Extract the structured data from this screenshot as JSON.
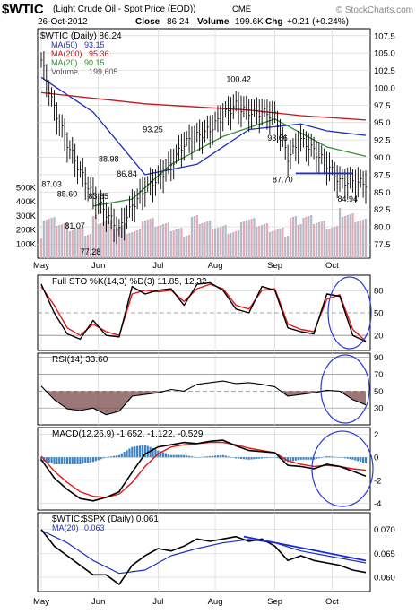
{
  "header": {
    "symbol": "$WTIC",
    "description": "(Light Crude Oil - Spot Price (EOD))",
    "exchange": "CME",
    "watermark": "© StockCharts.com",
    "date": "26-Oct-2012",
    "close_label": "Close",
    "close": "86.24",
    "volume_label": "Volume",
    "volume": "199.6K",
    "chg_label": "Chg",
    "chg": "+0.21 (+0.24%)"
  },
  "colors": {
    "price_bar": "#000000",
    "ma50": "#1f2fbf",
    "ma200": "#c0181b",
    "ma20": "#2f8f2f",
    "volume_up": "#b8b8c8",
    "volume_down": "#e8a8b0",
    "stoch_k": "#000000",
    "stoch_d": "#e01818",
    "macd_line": "#000000",
    "signal_line": "#e01818",
    "hist": "#3a82c4",
    "circle": "#2b3bd6",
    "ratio_ma": "#1f2fbf",
    "trendline": "#1a2ad8",
    "rsi_fill": "#7a4a4a"
  },
  "chart_data": [
    {
      "type": "line",
      "panel": "price",
      "title": "$WTIC (Daily) 86.24",
      "legend": [
        {
          "name": "MA(50)",
          "value": "93.15"
        },
        {
          "name": "MA(200)",
          "value": "95.36"
        },
        {
          "name": "MA(20)",
          "value": "90.15"
        },
        {
          "name": "Volume",
          "value": "199,605"
        }
      ],
      "x_labels": [
        "May",
        "Jun",
        "Jul",
        "Aug",
        "Sep",
        "Oct"
      ],
      "yticks": [
        77.5,
        80.0,
        82.5,
        85.0,
        87.5,
        90.0,
        92.5,
        95.0,
        97.5,
        100.0,
        102.5,
        105.0,
        107.5
      ],
      "ylim": [
        75.5,
        108.5
      ],
      "volume_ticks": [
        "100K",
        "200K",
        "300K",
        "400K",
        "500K"
      ],
      "x_index_range": [
        0,
        125
      ],
      "annotations": [
        {
          "x": 4,
          "y": 87.03,
          "text": "87.03"
        },
        {
          "x": 10,
          "y": 85.6,
          "text": "85.60"
        },
        {
          "x": 13,
          "y": 81.07,
          "text": "81.07"
        },
        {
          "x": 19,
          "y": 77.28,
          "text": "77.28"
        },
        {
          "x": 22,
          "y": 83.65,
          "text": "83.65"
        },
        {
          "x": 26,
          "y": 88.98,
          "text": "88.98"
        },
        {
          "x": 33,
          "y": 86.84,
          "text": "86.84"
        },
        {
          "x": 43,
          "y": 93.25,
          "text": "93.25"
        },
        {
          "x": 76,
          "y": 100.42,
          "text": "100.42"
        },
        {
          "x": 91,
          "y": 93.66,
          "text": "93.66"
        },
        {
          "x": 93,
          "y": 87.7,
          "text": "87.70"
        },
        {
          "x": 118,
          "y": 84.94,
          "text": "84.94"
        }
      ],
      "support_line": {
        "from_x": 98,
        "to_x": 120,
        "y": 87.7
      },
      "close_series": {
        "x": [
          0,
          5,
          10,
          15,
          20,
          25,
          30,
          35,
          40,
          45,
          50,
          55,
          60,
          65,
          70,
          75,
          80,
          85,
          90,
          95,
          100,
          105,
          110,
          115,
          120,
          125
        ],
        "y": [
          104.0,
          97.0,
          92.0,
          88.0,
          84.5,
          82.0,
          79.5,
          83.0,
          85.5,
          87.0,
          89.0,
          92.0,
          93.0,
          94.0,
          96.0,
          97.5,
          96.5,
          96.5,
          96.0,
          90.0,
          92.5,
          91.0,
          89.0,
          86.5,
          86.5,
          86.24
        ]
      },
      "series": [
        {
          "name": "MA(50)",
          "x": [
            0,
            20,
            40,
            60,
            80,
            100,
            110,
            125
          ],
          "y": [
            101.5,
            96.5,
            87.5,
            89.0,
            94.0,
            94.8,
            93.8,
            93.15
          ]
        },
        {
          "name": "MA(200)",
          "x": [
            0,
            40,
            80,
            100,
            125
          ],
          "y": [
            99.3,
            97.7,
            96.8,
            96.0,
            95.36
          ]
        },
        {
          "name": "MA(20)",
          "x": [
            20,
            35,
            50,
            70,
            90,
            110,
            125
          ],
          "y": [
            83.0,
            84.0,
            89.0,
            93.0,
            95.5,
            91.5,
            90.15
          ]
        }
      ]
    },
    {
      "type": "line",
      "panel": "stochastic",
      "title": "Full STO %K(14,3) %D(3) 11.85, 12.32",
      "yticks": [
        20,
        50,
        80
      ],
      "ylim": [
        0,
        100
      ],
      "series": [
        {
          "name": "%K",
          "x": [
            0,
            5,
            10,
            15,
            20,
            25,
            30,
            35,
            40,
            45,
            50,
            55,
            60,
            65,
            70,
            75,
            80,
            85,
            90,
            95,
            100,
            105,
            110,
            115,
            120,
            125
          ],
          "y": [
            88,
            50,
            22,
            15,
            40,
            20,
            18,
            85,
            75,
            80,
            82,
            60,
            88,
            90,
            80,
            55,
            50,
            85,
            80,
            30,
            25,
            22,
            75,
            72,
            20,
            11.85
          ]
        },
        {
          "name": "%D",
          "x": [
            0,
            5,
            10,
            15,
            20,
            25,
            30,
            35,
            40,
            45,
            50,
            55,
            60,
            65,
            70,
            75,
            80,
            85,
            90,
            95,
            100,
            105,
            110,
            115,
            120,
            125
          ],
          "y": [
            85,
            60,
            30,
            20,
            35,
            25,
            20,
            75,
            80,
            78,
            80,
            65,
            82,
            88,
            82,
            60,
            55,
            80,
            82,
            35,
            28,
            25,
            68,
            74,
            28,
            12.32
          ]
        }
      ]
    },
    {
      "type": "area",
      "panel": "rsi",
      "title": "RSI(14) 33.60",
      "yticks": [
        30,
        50,
        70,
        90
      ],
      "ylim": [
        10,
        95
      ],
      "series": [
        {
          "name": "RSI",
          "x": [
            0,
            5,
            10,
            15,
            20,
            25,
            30,
            35,
            40,
            45,
            50,
            55,
            60,
            65,
            70,
            75,
            80,
            85,
            90,
            95,
            100,
            105,
            110,
            115,
            120,
            125
          ],
          "y": [
            56,
            40,
            29,
            27,
            30,
            22,
            26,
            44,
            46,
            48,
            52,
            50,
            58,
            60,
            62,
            59,
            60,
            58,
            55,
            44,
            46,
            48,
            51,
            50,
            40,
            33.6
          ]
        }
      ]
    },
    {
      "type": "line",
      "panel": "macd",
      "title": "MACD(12,26,9) -1.652, -1.122, -0.529",
      "yticks": [
        -4,
        -2,
        0,
        2
      ],
      "ylim": [
        -4.6,
        2.6
      ],
      "series": [
        {
          "name": "MACD",
          "x": [
            0,
            5,
            10,
            15,
            20,
            25,
            30,
            35,
            40,
            45,
            50,
            55,
            60,
            65,
            70,
            75,
            80,
            85,
            90,
            95,
            100,
            105,
            110,
            115,
            120,
            125
          ],
          "y": [
            -0.2,
            -1.8,
            -2.8,
            -3.6,
            -3.8,
            -3.5,
            -3.0,
            -1.3,
            0.3,
            0.9,
            1.1,
            1.3,
            1.2,
            1.4,
            1.5,
            1.0,
            0.6,
            0.5,
            0.4,
            -0.7,
            -0.8,
            -1.0,
            -0.6,
            -0.8,
            -1.2,
            -1.652
          ]
        },
        {
          "name": "Signal",
          "x": [
            0,
            5,
            10,
            15,
            20,
            25,
            30,
            35,
            40,
            45,
            50,
            55,
            60,
            65,
            70,
            75,
            80,
            85,
            90,
            95,
            100,
            105,
            110,
            115,
            120,
            125
          ],
          "y": [
            0.1,
            -1.2,
            -2.2,
            -3.0,
            -3.4,
            -3.5,
            -3.2,
            -2.2,
            -0.8,
            0.3,
            0.9,
            1.1,
            1.2,
            1.3,
            1.3,
            1.1,
            0.8,
            0.6,
            0.4,
            -0.3,
            -0.6,
            -0.8,
            -0.7,
            -0.8,
            -1.0,
            -1.122
          ]
        },
        {
          "name": "Histogram",
          "x": [
            0,
            5,
            10,
            15,
            20,
            25,
            30,
            35,
            40,
            45,
            50,
            55,
            60,
            65,
            70,
            75,
            80,
            85,
            90,
            95,
            100,
            105,
            110,
            115,
            120,
            125
          ],
          "y": [
            -0.3,
            -0.6,
            -0.6,
            -0.6,
            -0.4,
            0.0,
            0.2,
            0.9,
            1.1,
            0.6,
            0.2,
            0.2,
            0.0,
            0.1,
            0.2,
            -0.1,
            -0.2,
            -0.1,
            0.0,
            -0.4,
            -0.2,
            -0.2,
            0.1,
            0.0,
            -0.2,
            -0.529
          ]
        }
      ]
    },
    {
      "type": "line",
      "panel": "ratio",
      "title": "$WTIC:$SPX (Daily) 0.061",
      "legend": [
        {
          "name": "MA(20)",
          "value": "0.063"
        }
      ],
      "yticks": [
        0.06,
        0.065,
        0.07
      ],
      "ylim": [
        0.057,
        0.0735
      ],
      "trendline": {
        "from_x": 78,
        "from_y": 0.0685,
        "to_x": 125,
        "to_y": 0.0635
      },
      "series": [
        {
          "name": "$WTIC:$SPX",
          "x": [
            0,
            5,
            10,
            15,
            20,
            25,
            30,
            35,
            40,
            45,
            50,
            55,
            60,
            65,
            70,
            75,
            80,
            85,
            90,
            95,
            100,
            105,
            110,
            115,
            120,
            125
          ],
          "y": [
            0.07,
            0.0665,
            0.0645,
            0.0625,
            0.0605,
            0.0605,
            0.0585,
            0.0625,
            0.0645,
            0.066,
            0.0655,
            0.0665,
            0.068,
            0.0675,
            0.068,
            0.0685,
            0.0675,
            0.068,
            0.0665,
            0.0635,
            0.0645,
            0.0635,
            0.063,
            0.0625,
            0.0615,
            0.061
          ]
        },
        {
          "name": "MA(20)",
          "x": [
            0,
            10,
            20,
            30,
            40,
            50,
            60,
            70,
            80,
            90,
            100,
            110,
            125
          ],
          "y": [
            0.0698,
            0.0672,
            0.0635,
            0.0608,
            0.0615,
            0.0645,
            0.066,
            0.0672,
            0.0679,
            0.0672,
            0.0655,
            0.0645,
            0.063
          ]
        }
      ]
    }
  ]
}
